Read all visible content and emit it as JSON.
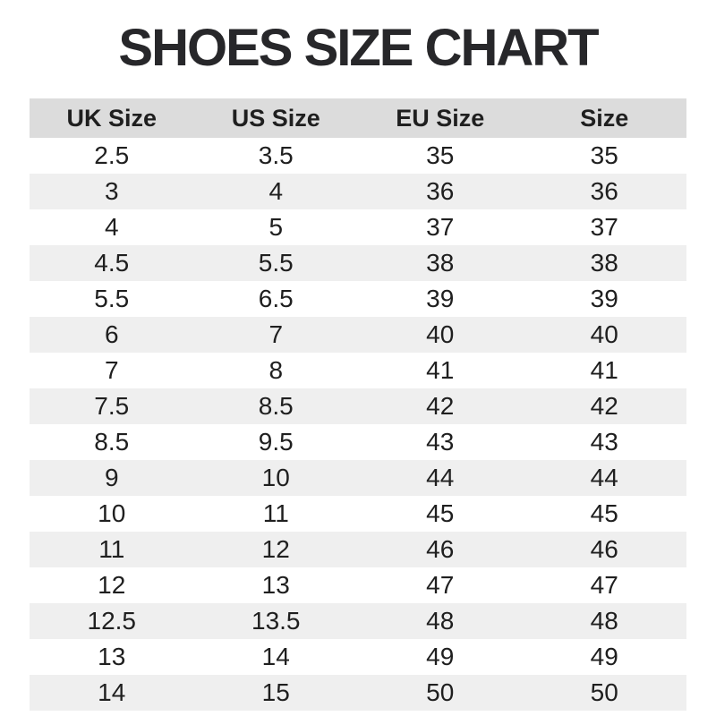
{
  "title": "SHOES SIZE CHART",
  "chart_data": {
    "type": "table",
    "title": "SHOES SIZE CHART",
    "columns": [
      "UK Size",
      "US Size",
      "EU Size",
      "Size"
    ],
    "rows": [
      [
        "2.5",
        "3.5",
        "35",
        "35"
      ],
      [
        "3",
        "4",
        "36",
        "36"
      ],
      [
        "4",
        "5",
        "37",
        "37"
      ],
      [
        "4.5",
        "5.5",
        "38",
        "38"
      ],
      [
        "5.5",
        "6.5",
        "39",
        "39"
      ],
      [
        "6",
        "7",
        "40",
        "40"
      ],
      [
        "7",
        "8",
        "41",
        "41"
      ],
      [
        "7.5",
        "8.5",
        "42",
        "42"
      ],
      [
        "8.5",
        "9.5",
        "43",
        "43"
      ],
      [
        "9",
        "10",
        "44",
        "44"
      ],
      [
        "10",
        "11",
        "45",
        "45"
      ],
      [
        "11",
        "12",
        "46",
        "46"
      ],
      [
        "12",
        "13",
        "47",
        "47"
      ],
      [
        "12.5",
        "13.5",
        "48",
        "48"
      ],
      [
        "13",
        "14",
        "49",
        "49"
      ],
      [
        "14",
        "15",
        "50",
        "50"
      ]
    ],
    "layout": {
      "row_striping": "alternating starting white",
      "alignment": "center"
    }
  },
  "colors": {
    "page_bg": "#ffffff",
    "header_bg": "#dcdcdc",
    "row_alt_bg": "#efefef",
    "text": "#1f1f1f",
    "title": "#27272a"
  }
}
